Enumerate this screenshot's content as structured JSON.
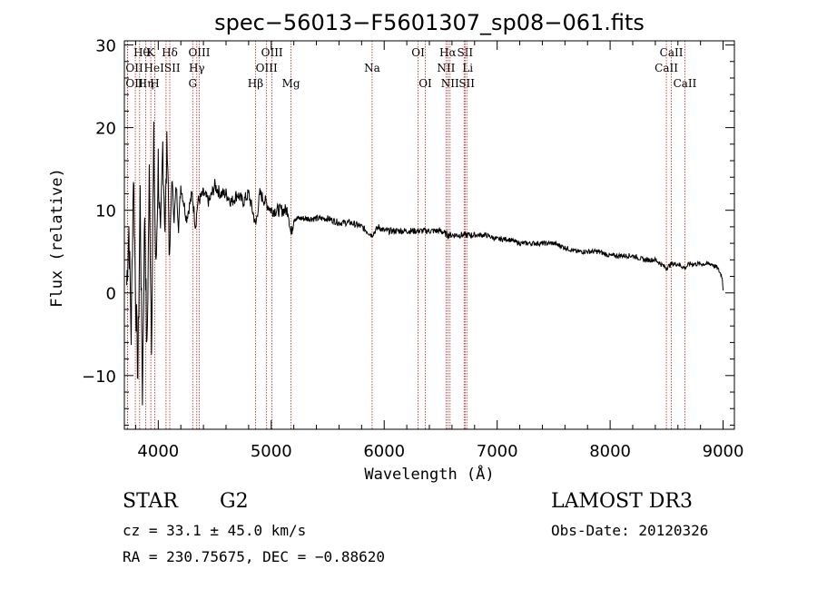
{
  "chart_data": {
    "type": "line",
    "title": "spec−56013−F5601307_sp08−061.fits",
    "xlabel": "Wavelength (Å)",
    "ylabel": "Flux (relative)",
    "xlim": [
      3700,
      9100
    ],
    "ylim": [
      -16.5,
      30.5
    ],
    "xticks": [
      4000,
      5000,
      6000,
      7000,
      8000,
      9000
    ],
    "yticks": [
      -10,
      0,
      10,
      20,
      30
    ],
    "xtick_labels": [
      "4000",
      "5000",
      "6000",
      "7000",
      "8000",
      "9000"
    ],
    "ytick_labels": [
      "−10",
      "0",
      "10",
      "20",
      "30"
    ],
    "grid": false,
    "series": [
      {
        "name": "flux",
        "x": [
          3720,
          3740,
          3760,
          3780,
          3800,
          3820,
          3840,
          3860,
          3880,
          3900,
          3920,
          3940,
          3960,
          3980,
          4000,
          4020,
          4040,
          4060,
          4080,
          4100,
          4120,
          4140,
          4160,
          4180,
          4200,
          4250,
          4300,
          4330,
          4350,
          4400,
          4450,
          4500,
          4550,
          4600,
          4650,
          4700,
          4750,
          4800,
          4850,
          4861,
          4900,
          4950,
          5000,
          5050,
          5100,
          5150,
          5175,
          5200,
          5250,
          5300,
          5400,
          5500,
          5600,
          5700,
          5800,
          5890,
          5950,
          6000,
          6100,
          6200,
          6300,
          6400,
          6500,
          6563,
          6600,
          6700,
          6800,
          6900,
          7000,
          7100,
          7200,
          7300,
          7400,
          7500,
          7600,
          7700,
          7800,
          7900,
          8000,
          8100,
          8200,
          8300,
          8400,
          8498,
          8542,
          8600,
          8662,
          8700,
          8800,
          8850,
          8900,
          8950,
          8990,
          9000
        ],
        "values": [
          1,
          8,
          -5,
          15,
          0,
          -10,
          12,
          -12,
          10,
          -8,
          14,
          -5,
          18,
          2,
          16,
          5,
          18,
          8,
          19,
          4,
          14,
          9,
          13,
          8,
          13,
          9,
          12,
          8,
          11,
          12,
          11,
          13,
          12,
          12,
          11,
          12,
          11,
          12,
          9,
          8,
          12,
          11,
          10,
          10,
          10,
          10,
          7,
          9,
          9,
          9,
          9,
          9,
          8.5,
          8.5,
          8,
          7,
          8,
          7.5,
          7.5,
          7.5,
          7.5,
          7.5,
          7.5,
          7,
          7,
          7,
          7,
          7,
          6.5,
          6.5,
          6,
          6,
          6,
          6,
          5.5,
          5,
          5,
          5,
          4.5,
          4.5,
          4.5,
          4,
          4,
          3,
          3.5,
          3.5,
          3,
          3.5,
          3.5,
          3.5,
          3.5,
          3,
          2,
          0.5
        ]
      }
    ],
    "lines": [
      {
        "name": "Hθ",
        "wave": 3797,
        "row": 1,
        "dir": "right"
      },
      {
        "name": "OII",
        "wave": 3727,
        "row": 2,
        "dir": "right"
      },
      {
        "name": "OII",
        "wave": 3727,
        "row": 3,
        "dir": "right"
      },
      {
        "name": "K",
        "wave": 3934,
        "row": 1,
        "dir": "center"
      },
      {
        "name": "Hδ",
        "wave": 4102,
        "row": 1,
        "dir": "center"
      },
      {
        "name": "HeI",
        "wave": 3889,
        "row": 2,
        "dir": "right"
      },
      {
        "name": "SII",
        "wave": 4069,
        "row": 2,
        "dir": "right"
      },
      {
        "name": "Hη",
        "wave": 3835,
        "row": 3,
        "dir": "right"
      },
      {
        "name": "H",
        "wave": 3969,
        "row": 3,
        "dir": "center"
      },
      {
        "name": "OIII",
        "wave": 4363,
        "row": 1,
        "dir": "center"
      },
      {
        "name": "Hγ",
        "wave": 4341,
        "row": 2,
        "dir": "center"
      },
      {
        "name": "G",
        "wave": 4305,
        "row": 3,
        "dir": "center"
      },
      {
        "name": "OIII",
        "wave": 5007,
        "row": 1,
        "dir": "center"
      },
      {
        "name": "OIII",
        "wave": 4959,
        "row": 2,
        "dir": "center"
      },
      {
        "name": "Hβ",
        "wave": 4861,
        "row": 3,
        "dir": "center"
      },
      {
        "name": "Mg",
        "wave": 5175,
        "row": 3,
        "dir": "center"
      },
      {
        "name": "Na",
        "wave": 5893,
        "row": 2,
        "dir": "center"
      },
      {
        "name": "OI",
        "wave": 6300,
        "row": 1,
        "dir": "center"
      },
      {
        "name": "OI",
        "wave": 6364,
        "row": 3,
        "dir": "center"
      },
      {
        "name": "Hα",
        "wave": 6563,
        "row": 1,
        "dir": "center"
      },
      {
        "name": "NII",
        "wave": 6548,
        "row": 2,
        "dir": "center"
      },
      {
        "name": "NII",
        "wave": 6583,
        "row": 3,
        "dir": "center"
      },
      {
        "name": "SII",
        "wave": 6716,
        "row": 1,
        "dir": "center"
      },
      {
        "name": "Li",
        "wave": 6708,
        "row": 2,
        "dir": "right"
      },
      {
        "name": "SII",
        "wave": 6731,
        "row": 3,
        "dir": "center"
      },
      {
        "name": "CaII",
        "wave": 8542,
        "row": 1,
        "dir": "center"
      },
      {
        "name": "CaII",
        "wave": 8498,
        "row": 2,
        "dir": "center"
      },
      {
        "name": "CaII",
        "wave": 8662,
        "row": 3,
        "dir": "center"
      }
    ],
    "line_color": "#c8201f",
    "spectrum_color": "#000000"
  },
  "info": {
    "object_class": "STAR",
    "subclass": "G2",
    "survey": "LAMOST DR3",
    "cz": "cz = 33.1 ± 45.0 km/s",
    "obs_date": "Obs-Date: 20120326",
    "coords": "RA = 230.75675, DEC =  −0.88620"
  }
}
